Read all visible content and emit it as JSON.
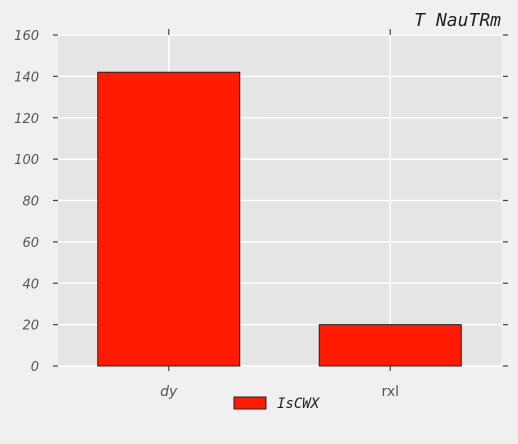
{
  "chart_data": {
    "type": "bar",
    "title": "T NauTRm",
    "xlabel": "",
    "ylabel": "",
    "categories": [
      "dy",
      "rxl"
    ],
    "category_styles": [
      "italic",
      "normal"
    ],
    "series": [
      {
        "name": "IsCWX",
        "values": [
          142,
          20
        ],
        "color": "#ff1a00"
      }
    ],
    "ylim": [
      0,
      160
    ],
    "yticks": [
      0,
      20,
      40,
      60,
      80,
      100,
      120,
      140,
      160
    ],
    "grid": true,
    "legend_placement": "bottom-center",
    "background_color": "#e5e5e5",
    "grid_color": "#ffffff"
  }
}
